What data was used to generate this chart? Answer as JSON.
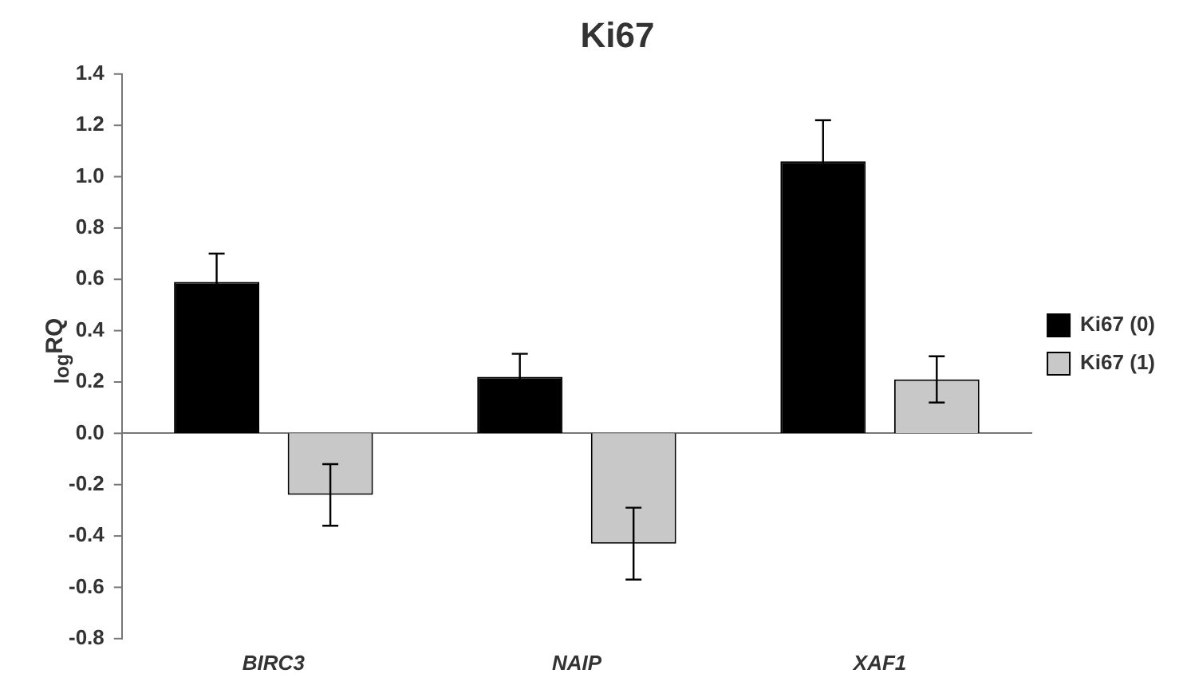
{
  "chart_data": {
    "type": "bar",
    "title": "Ki67",
    "ylabel": "$_{log}$RQ",
    "categories": [
      "BIRC3",
      "NAIP",
      "XAF1"
    ],
    "series": [
      {
        "name": "Ki67 (0)",
        "color": "#000000",
        "values": [
          0.59,
          0.22,
          1.06
        ],
        "errors": [
          0.11,
          0.09,
          0.16
        ]
      },
      {
        "name": "Ki67 (1)",
        "color": "#c8c8c8",
        "values": [
          -0.24,
          -0.43,
          0.21
        ],
        "errors": [
          0.12,
          0.14,
          0.09
        ]
      }
    ],
    "ylim": [
      -0.8,
      1.4
    ],
    "yticks": [
      {
        "value": -0.8,
        "label": "-0.8"
      },
      {
        "value": -0.6,
        "label": "-0.6"
      },
      {
        "value": -0.4,
        "label": "-0.4"
      },
      {
        "value": -0.2,
        "label": "-0.2"
      },
      {
        "value": 0,
        "label": "0.0"
      },
      {
        "value": 0.2,
        "label": "0.2"
      },
      {
        "value": 0.4,
        "label": "0.4"
      },
      {
        "value": 0.6,
        "label": "0.6"
      },
      {
        "value": 0.8,
        "label": "0.8"
      },
      {
        "value": 1,
        "label": "1.0"
      },
      {
        "value": 1.2,
        "label": "1.2"
      },
      {
        "value": 1.4,
        "label": "1.4"
      }
    ],
    "legend": "right"
  }
}
